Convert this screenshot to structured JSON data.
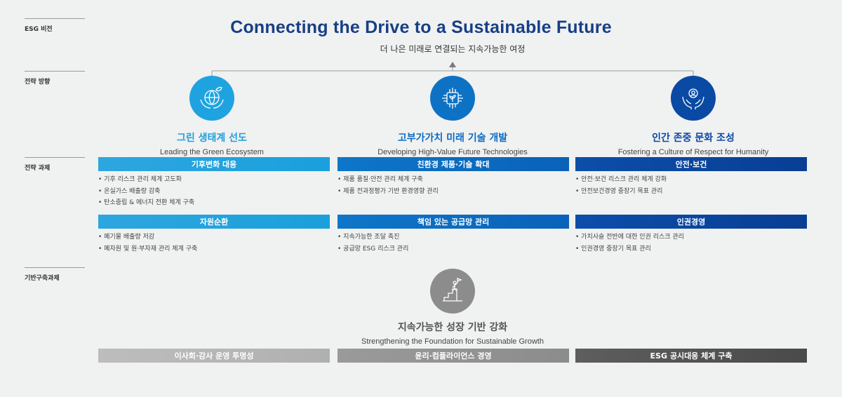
{
  "labels": {
    "vision": "ESG 비전",
    "direction": "전략 방향",
    "tasks": "전략 과제",
    "foundation": "기반구축과제"
  },
  "vision": {
    "title": "Connecting the Drive to a Sustainable Future",
    "subtitle": "더 나은 미래로 연결되는 지속가능한 여정"
  },
  "pillars": [
    {
      "title": "그린 생태계 선도",
      "subtitle": "Leading the Green Ecosystem",
      "icon": "globe-leaf-hands-icon",
      "color": "#1f9fdc",
      "tasks": [
        {
          "name": "기후변화 대응",
          "items": [
            "• 기후 리스크 관리 체계 고도화",
            "• 온실가스 배출량 감축",
            "• 탄소중립 & 에너지 전환 체계 구축"
          ]
        },
        {
          "name": "자원순환",
          "items": [
            "• 폐기물 배출량 저감",
            "• 폐자원 및 원·부자재 관리 체계 구축"
          ]
        }
      ]
    },
    {
      "title": "고부가가치 미래 기술 개발",
      "subtitle": "Developing High-Value Future Technologies",
      "icon": "chip-leaf-icon",
      "color": "#0b6cc0",
      "tasks": [
        {
          "name": "친환경 제품·기술 확대",
          "items": [
            "• 제품 품질·안전 관리 체계 구축",
            "• 제품 전과정평가 기반 환경영향 관리"
          ]
        },
        {
          "name": "책임 있는 공급망 관리",
          "items": [
            "• 지속가능한 조달 촉진",
            "• 공급망 ESG 리스크 관리"
          ]
        }
      ]
    },
    {
      "title": "인간 존중 문화 조성",
      "subtitle": "Fostering a Culture of Respect for Humanity",
      "icon": "person-hands-icon",
      "color": "#0a4aa4",
      "tasks": [
        {
          "name": "안전·보건",
          "items": [
            "• 안전·보건 리스크 관리 체계 강화",
            "• 안전보건경영 중장기 목표 관리"
          ]
        },
        {
          "name": "인권경영",
          "items": [
            "• 가치사슬 전반에 대한 인권 리스크 관리",
            "• 인권경영 중장기 목표 관리"
          ]
        }
      ]
    }
  ],
  "foundation": {
    "title": "지속가능한 성장 기반 강화",
    "subtitle": "Strengthening the Foundation for Sustainable Growth",
    "icon": "stairs-flag-icon",
    "bars": [
      "이사회·감사 운영 투명성",
      "윤리·컴플라이언스 경영",
      "ESG 공시대응 체계 구축"
    ]
  }
}
